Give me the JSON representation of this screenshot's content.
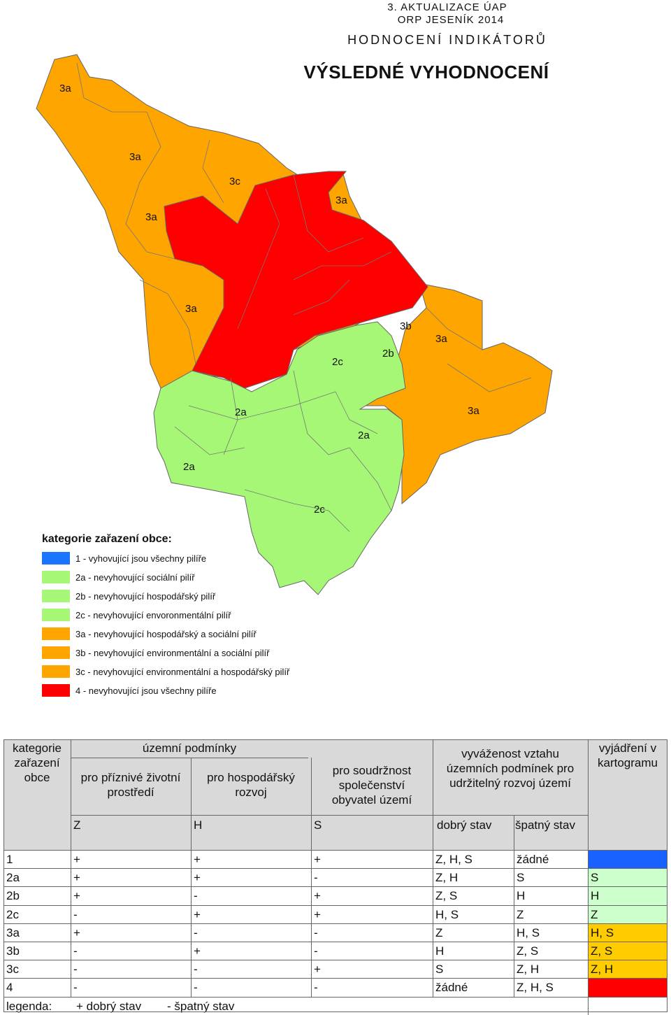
{
  "header": {
    "line1": "3. AKTUALIZACE ÚAP",
    "line2": "ORP JESENÍK 2014",
    "line3": "HODNOCENÍ INDIKÁTORŮ",
    "title": "VÝSLEDNÉ VYHODNOCENÍ"
  },
  "colors": {
    "cat1": "#1a75ff",
    "cat2": "#a6f775",
    "cat3": "#ffa500",
    "cat4": "#ff0000"
  },
  "map_labels": [
    "3a",
    "3a",
    "3c",
    "3a",
    "3a",
    "3a",
    "3a",
    "3b",
    "2c",
    "2b",
    "3a",
    "2a",
    "2a",
    "2a",
    "2c"
  ],
  "legend": {
    "title": "kategorie zařazení obce:",
    "items": [
      {
        "label": "1 - vyhovující jsou všechny pilíře",
        "color": "#1a75ff"
      },
      {
        "label": "2a - nevyhovující sociální pilíř",
        "color": "#a6f775"
      },
      {
        "label": "2b - nevyhovující hospodářský pilíř",
        "color": "#a6f775"
      },
      {
        "label": "2c - nevyhovující envoronmentální pilíř",
        "color": "#a6f775"
      },
      {
        "label": "3a - nevyhovující hospodářský a sociální pilíř",
        "color": "#ffa500"
      },
      {
        "label": "3b - nevyhovující environmentální a sociální pilíř",
        "color": "#ffa500"
      },
      {
        "label": "3c - nevyhovující environmentální a hospodářský pilíř",
        "color": "#ffa500"
      },
      {
        "label": "4 - nevyhovující jsou všechny pilíře",
        "color": "#ff0000"
      }
    ]
  },
  "table": {
    "h_kategorie": "kategorie zařazení obce",
    "h_uzemni": "územní podmínky",
    "h_zivotni": "pro příznivé životní prostředí",
    "h_hospodarsky": "pro hospodářský rozvoj",
    "h_soudrznost": "pro soudržnost společenství obyvatel území",
    "h_vyvazenost": "vyváženost vztahu územních podmínek pro udržitelný rozvoj území",
    "h_vyjadreni": "vyjádření v kartogramu",
    "sub_z": "Z",
    "sub_h": "H",
    "sub_s": "S",
    "sub_dobry": "dobrý stav",
    "sub_spatny": "špatný stav",
    "rows": [
      {
        "k": "1",
        "z": "+",
        "h": "+",
        "s": "+",
        "dobry": "Z, H, S",
        "spatny": "žádné",
        "vyj": "",
        "color": "#1a62ff"
      },
      {
        "k": "2a",
        "z": "+",
        "h": "+",
        "s": "-",
        "dobry": "Z, H",
        "spatny": "S",
        "vyj": "S",
        "color": "#ccffcc"
      },
      {
        "k": "2b",
        "z": "+",
        "h": "-",
        "s": "+",
        "dobry": "Z, S",
        "spatny": "H",
        "vyj": "H",
        "color": "#ccffcc"
      },
      {
        "k": "2c",
        "z": "-",
        "h": "+",
        "s": "+",
        "dobry": "H, S",
        "spatny": "Z",
        "vyj": "Z",
        "color": "#ccffcc"
      },
      {
        "k": "3a",
        "z": "+",
        "h": "-",
        "s": "-",
        "dobry": "Z",
        "spatny": "H, S",
        "vyj": "H, S",
        "color": "#ffcc00"
      },
      {
        "k": "3b",
        "z": "-",
        "h": "+",
        "s": "-",
        "dobry": "H",
        "spatny": "Z, S",
        "vyj": "Z, S",
        "color": "#ffcc00"
      },
      {
        "k": "3c",
        "z": "-",
        "h": "-",
        "s": "+",
        "dobry": "S",
        "spatny": "Z, H",
        "vyj": "Z, H",
        "color": "#ffcc00"
      },
      {
        "k": "4",
        "z": "-",
        "h": "-",
        "s": "-",
        "dobry": "žádné",
        "spatny": "Z, H, S",
        "vyj": "",
        "color": "#ff0000"
      }
    ],
    "legenda_label": "legenda:",
    "legenda_good": "+ dobrý stav",
    "legenda_bad": "- špatný stav"
  }
}
